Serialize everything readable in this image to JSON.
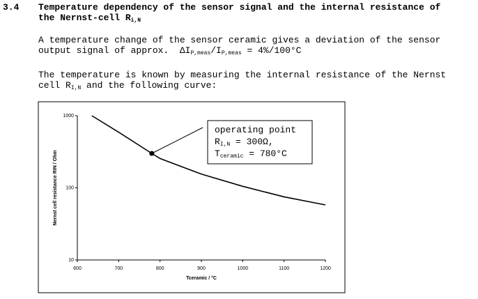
{
  "section": {
    "number": "3.4",
    "title_lines": [
      [
        {
          "text": "Temperature dependency of the sensor signal and the internal resistance of"
        }
      ],
      [
        {
          "text": "the Nernst-cell R"
        },
        {
          "sub": "i,N"
        }
      ]
    ]
  },
  "paragraphs": [
    {
      "lines": [
        [
          {
            "text": "A temperature change of the sensor ceramic gives a deviation of the sensor"
          }
        ],
        [
          {
            "text": "output signal of approx.  ΔI"
          },
          {
            "sub": "P,meas"
          },
          {
            "text": "/I"
          },
          {
            "sub": "P,meas"
          },
          {
            "text": " = 4%/100°C"
          }
        ]
      ]
    },
    {
      "lines": [
        [
          {
            "text": "The temperature is known by measuring the internal resistance of the Nernst"
          }
        ],
        [
          {
            "text": "cell R"
          },
          {
            "sub": "I,N"
          },
          {
            "text": " and the following curve:"
          }
        ]
      ]
    }
  ],
  "chart_data": {
    "type": "line",
    "xlabel": "Tceramic / °C",
    "ylabel": "Nernst cell resistance RIN / Ohm",
    "x": [
      635,
      700,
      780,
      800,
      900,
      1000,
      1100,
      1200
    ],
    "values": [
      1000,
      590,
      300,
      255,
      155,
      105,
      75,
      58
    ],
    "color": "#000000",
    "xlim": [
      600,
      1200
    ],
    "xticks": [
      600,
      700,
      800,
      900,
      1000,
      1100,
      1200
    ],
    "ylim": [
      10,
      1000
    ],
    "yticks": [
      10,
      100,
      1000
    ],
    "yscale": "log",
    "annotation": {
      "x": 780,
      "y": 300,
      "lines": [
        [
          {
            "text": "operating point"
          }
        ],
        [
          {
            "text": "R"
          },
          {
            "sub": "I,N"
          },
          {
            "text": " = 300Ω,"
          }
        ],
        [
          {
            "text": "T"
          },
          {
            "sub": "ceramic"
          },
          {
            "text": " = 780°C"
          }
        ]
      ]
    }
  }
}
